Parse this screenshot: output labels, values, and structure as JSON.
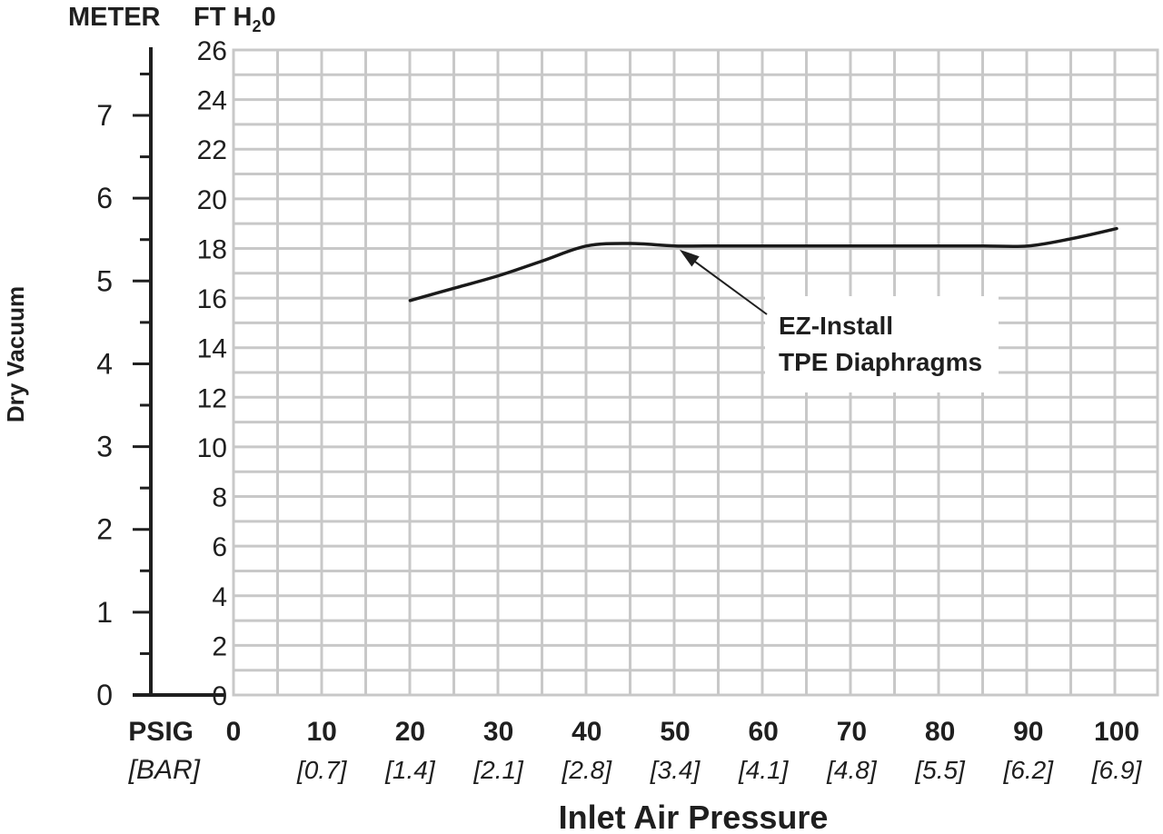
{
  "chart_data": {
    "type": "line",
    "title": "",
    "xlabel": "Inlet Air Pressure",
    "ylabel": "Dry Vacuum",
    "x_unit_primary": "PSIG",
    "x_unit_secondary": "[BAR]",
    "x_ticks": [
      0,
      10,
      20,
      30,
      40,
      50,
      60,
      70,
      80,
      90,
      100
    ],
    "x_ticks_bar": [
      "",
      "[0.7]",
      "[1.4]",
      "[2.1]",
      "[2.8]",
      "[3.4]",
      "[4.1]",
      "[4.8]",
      "[5.5]",
      "[6.2]",
      "[6.9]"
    ],
    "xlim": [
      0,
      100
    ],
    "y_left_unit": "METER",
    "y_left_ticks": [
      0,
      1,
      2,
      3,
      4,
      5,
      6,
      7
    ],
    "y_left_lim": [
      0,
      7.9
    ],
    "y_right_unit_main": "FT H",
    "y_right_unit_sub": "2",
    "y_right_unit_end": "0",
    "y_right_ticks": [
      0,
      2,
      4,
      6,
      8,
      10,
      12,
      14,
      16,
      18,
      20,
      22,
      24,
      26
    ],
    "ylim": [
      0,
      26
    ],
    "grid": true,
    "series": [
      {
        "name": "",
        "x": [
          20,
          25,
          30,
          35,
          40,
          45,
          50,
          55,
          60,
          65,
          70,
          75,
          80,
          85,
          90,
          95,
          100
        ],
        "values": [
          15.9,
          16.4,
          16.9,
          17.5,
          18.1,
          18.2,
          18.1,
          18.1,
          18.1,
          18.1,
          18.1,
          18.1,
          18.1,
          18.1,
          18.1,
          18.4,
          18.8
        ]
      }
    ],
    "annotation": {
      "lines": [
        "EZ-Install",
        "TPE Diaphragms"
      ],
      "points_to": {
        "x": 50.5,
        "y": 18.1
      }
    },
    "colors": {
      "grid": "#c8c8c8",
      "line": "#1a1a1a",
      "text": "#1f1f1f"
    }
  }
}
